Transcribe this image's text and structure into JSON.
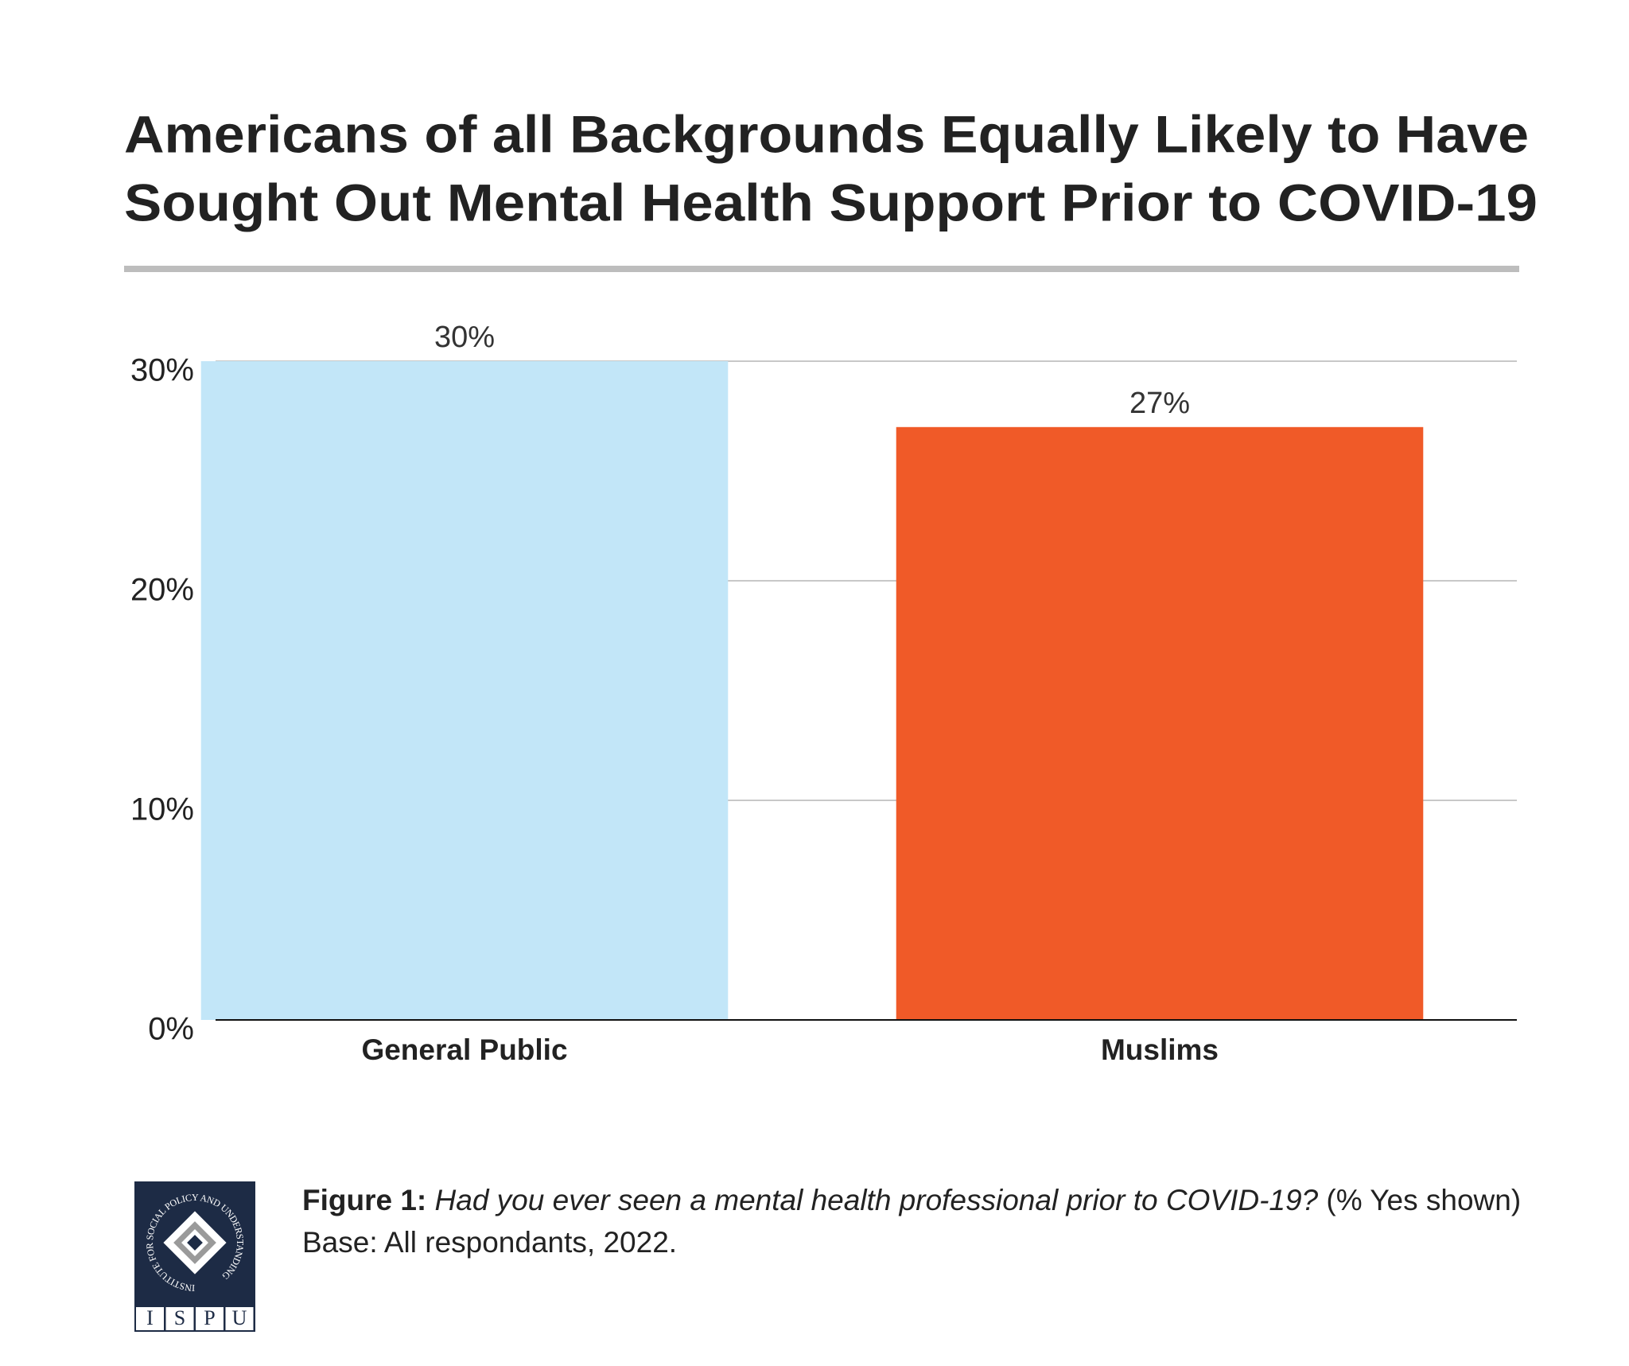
{
  "chart_data": {
    "type": "bar",
    "title": [
      "Americans of all Backgrounds Equally Likely to Have",
      "Sought Out Mental Health Support Prior to COVID-19"
    ],
    "categories": [
      "General Public",
      "Muslims"
    ],
    "values": [
      30,
      27
    ],
    "value_labels": [
      "30%",
      "27%"
    ],
    "colors": [
      "#c2e6f8",
      "#f05a28"
    ],
    "ylim": [
      0,
      30
    ],
    "yticks": [
      {
        "value": 0,
        "label": "0%"
      },
      {
        "value": 10,
        "label": "10%"
      },
      {
        "value": 20,
        "label": "20%"
      },
      {
        "value": 30,
        "label": "30%"
      }
    ],
    "grid": true
  },
  "caption": {
    "label": "Figure 1:",
    "question": "Had you ever seen a mental health professional prior to COVID-19?",
    "note": "(% Yes shown) Base: All respondants, 2022."
  },
  "logo": {
    "ring": "INSTITUTE FOR SOCIAL POLICY AND UNDERSTANDING",
    "letters": [
      "I",
      "S",
      "P",
      "U"
    ]
  }
}
